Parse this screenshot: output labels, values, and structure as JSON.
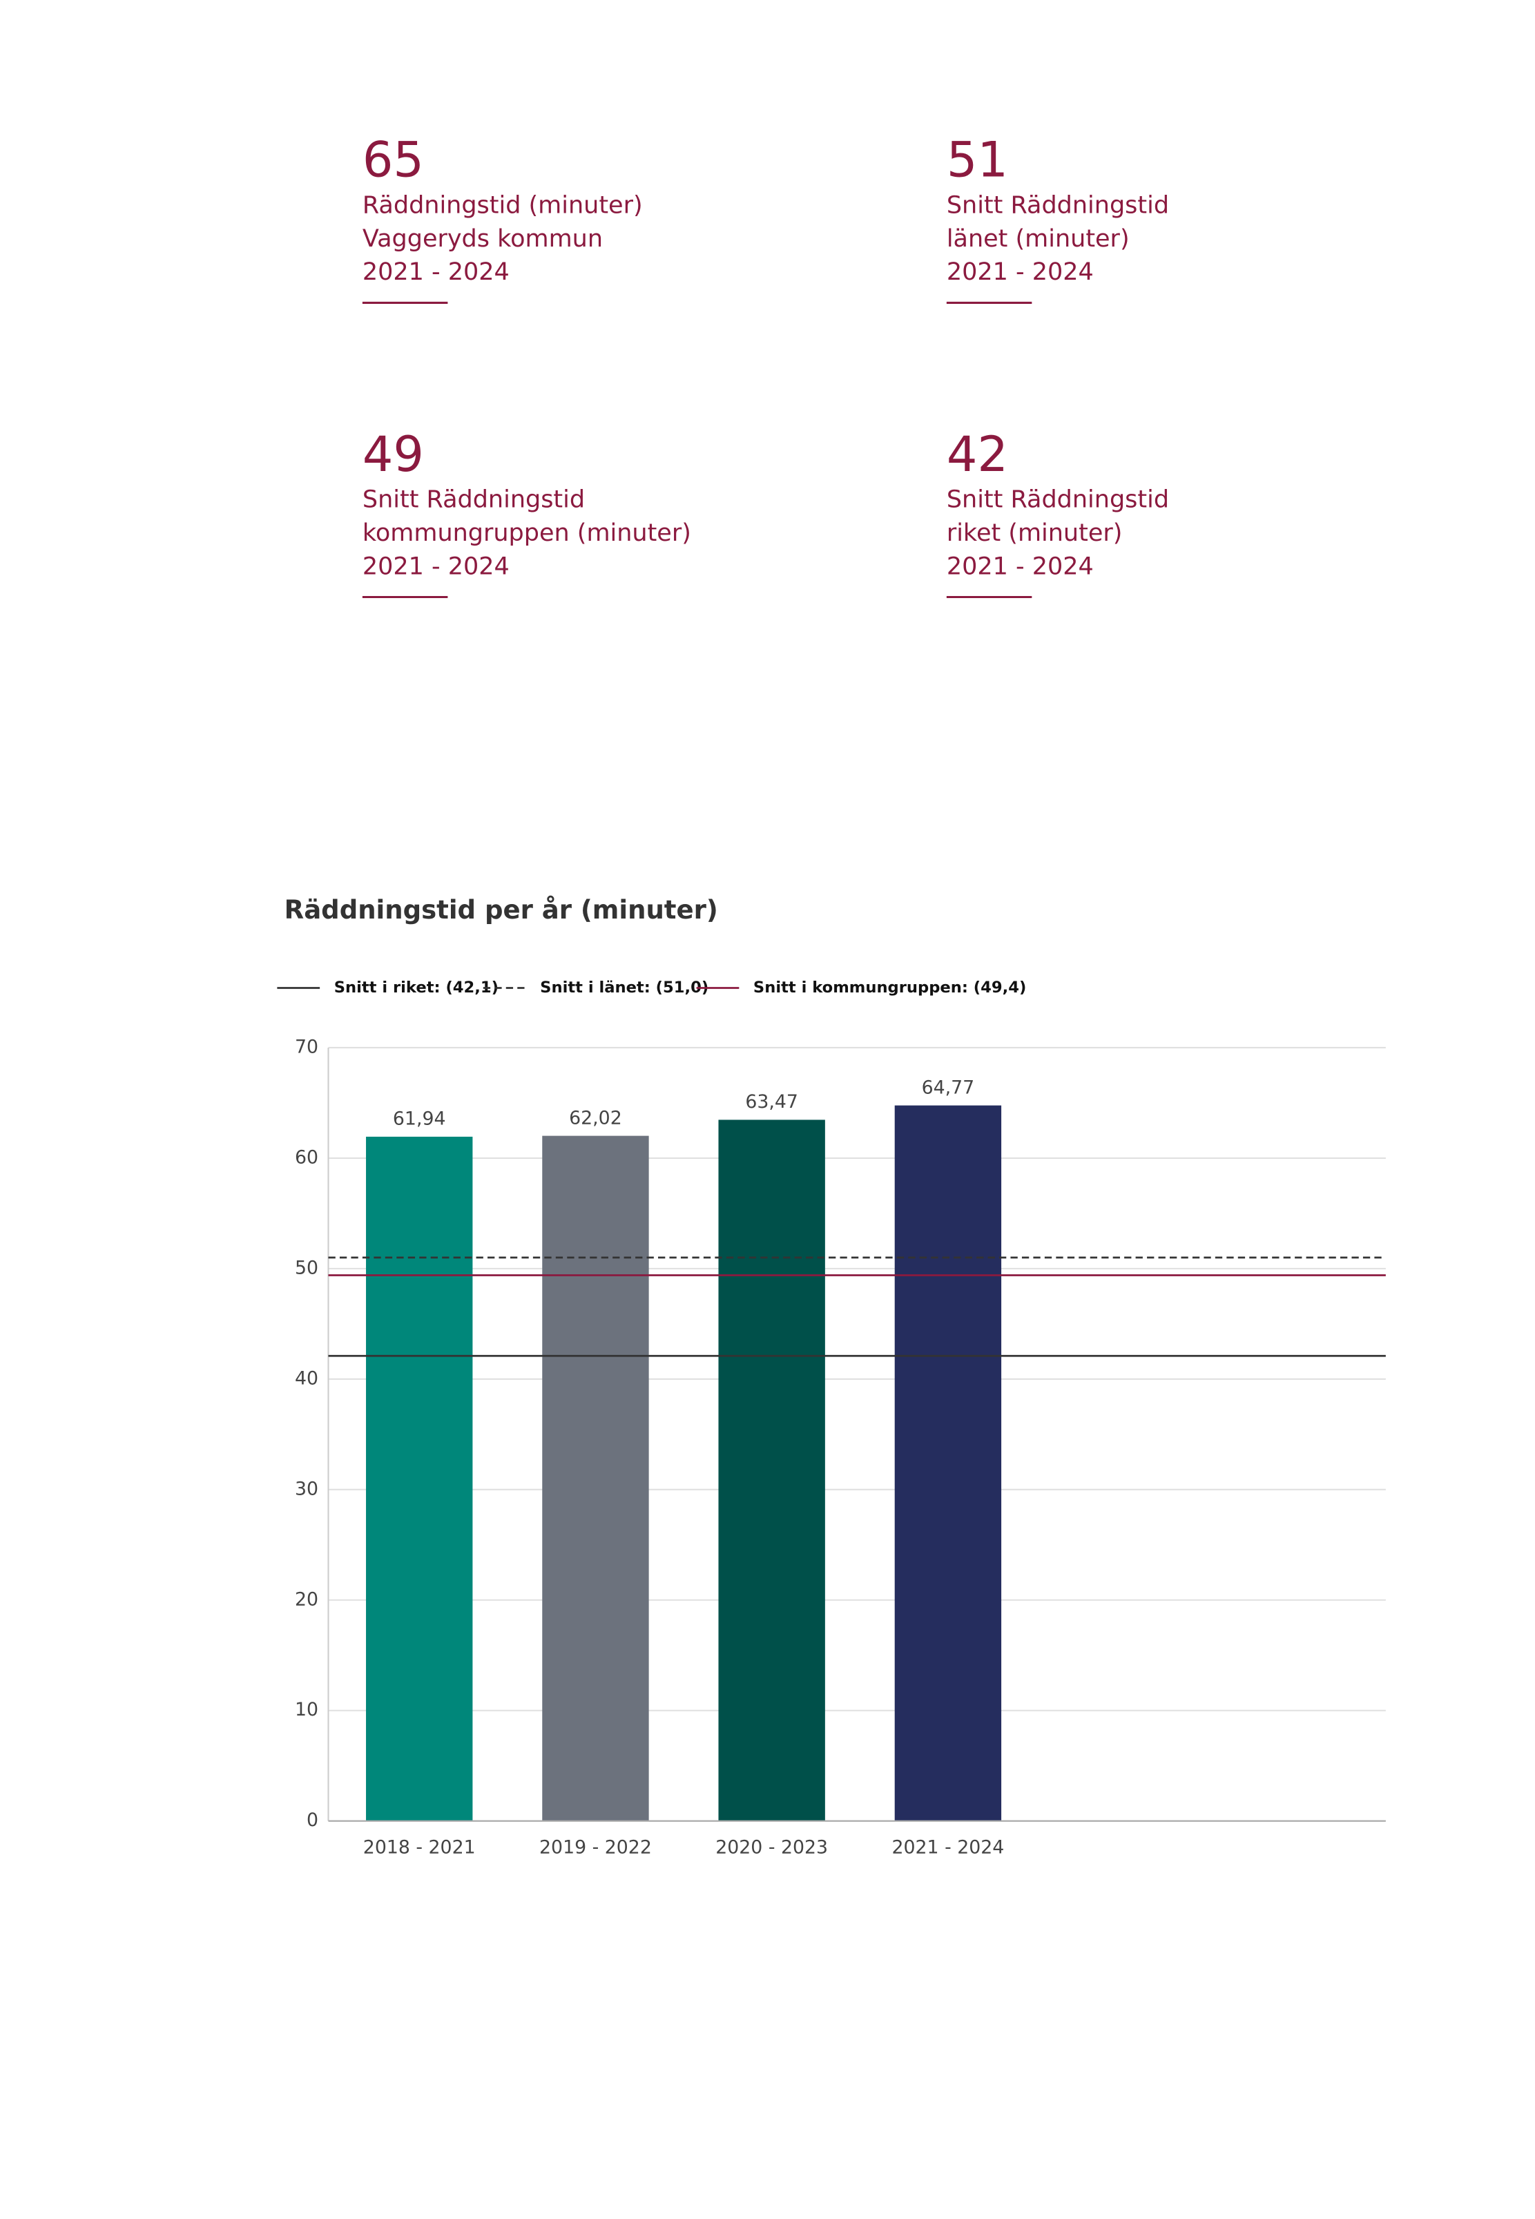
{
  "kpis": [
    {
      "value": 65,
      "lines": [
        "Räddningstid (minuter)",
        "Vaggeryds kommun",
        "2021 - 2024"
      ]
    },
    {
      "value": 51,
      "lines": [
        "Snitt Räddningstid",
        "länet (minuter)",
        "2021 - 2024"
      ]
    },
    {
      "value": 49,
      "lines": [
        "Snitt Räddningstid",
        "kommungruppen (minuter)",
        "2021 - 2024"
      ]
    },
    {
      "value": 42,
      "lines": [
        "Snitt Räddningstid",
        "riket (minuter)",
        "2021 - 2024"
      ]
    }
  ],
  "chart_data": {
    "type": "bar",
    "title": "Räddningstid per år (minuter)",
    "categories": [
      "2018 - 2021",
      "2019 - 2022",
      "2020 - 2023",
      "2021 - 2024"
    ],
    "values": [
      61.94,
      62.02,
      63.47,
      64.77
    ],
    "value_labels": [
      "61,94",
      "62,02",
      "63,47",
      "64,77"
    ],
    "colors": [
      "#00877a",
      "#6c727d",
      "#00504a",
      "#252d5e"
    ],
    "ylim": [
      0,
      70
    ],
    "yticks": [
      0,
      10,
      20,
      30,
      40,
      50,
      60,
      70
    ],
    "grid": true,
    "reference_lines": [
      {
        "name": "Snitt i riket: (42,1)",
        "value": 42.1,
        "style": "solid",
        "color": "#333333"
      },
      {
        "name": "Snitt i länet: (51,0)",
        "value": 51.0,
        "style": "dashed",
        "color": "#333333"
      },
      {
        "name": "Snitt i kommungruppen: (49,4)",
        "value": 49.4,
        "style": "solid",
        "color": "#8b1a3f"
      }
    ]
  }
}
